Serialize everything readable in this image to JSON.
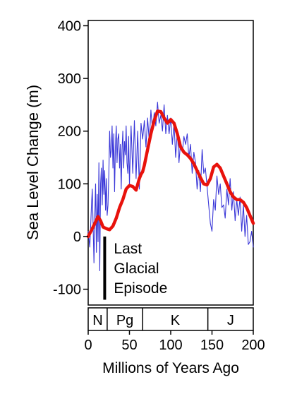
{
  "chart_data": {
    "type": "line",
    "xlabel": "Millions of Years Ago",
    "ylabel": "Sea Level Change (m)",
    "xlim": [
      0,
      200
    ],
    "ylim": [
      -130,
      410
    ],
    "x_ticks": [
      0,
      50,
      100,
      150,
      200
    ],
    "y_ticks": [
      -100,
      0,
      100,
      200,
      300,
      400
    ],
    "grid": false,
    "series": [
      {
        "color": "#e8120c",
        "style": "thick-smoothed",
        "x": [
          0,
          4,
          8,
          12,
          15,
          18,
          22,
          26,
          30,
          34,
          38,
          42,
          46,
          50,
          54,
          58,
          62,
          64,
          66,
          68,
          72,
          76,
          80,
          84,
          88,
          92,
          96,
          100,
          104,
          108,
          112,
          116,
          120,
          124,
          128,
          132,
          136,
          140,
          144,
          148,
          152,
          156,
          160,
          164,
          168,
          172,
          176,
          180,
          184,
          188,
          192,
          196,
          200
        ],
        "y": [
          0,
          12,
          25,
          38,
          30,
          18,
          15,
          13,
          20,
          35,
          55,
          70,
          90,
          97,
          95,
          88,
          110,
          118,
          123,
          135,
          165,
          195,
          220,
          238,
          237,
          225,
          215,
          222,
          215,
          195,
          170,
          160,
          155,
          148,
          138,
          125,
          112,
          100,
          98,
          110,
          132,
          137,
          130,
          115,
          100,
          85,
          75,
          70,
          70,
          65,
          55,
          40,
          25
        ]
      },
      {
        "color": "#3a37d8",
        "style": "thin-noisy",
        "x": [
          0,
          2,
          4,
          5,
          6,
          7,
          8,
          9,
          10,
          11,
          12,
          13,
          14,
          15,
          16,
          17,
          18,
          19,
          20,
          21,
          22,
          23,
          24,
          25,
          26,
          27,
          28,
          29,
          30,
          31,
          32,
          33,
          34,
          35,
          36,
          37,
          38,
          39,
          40,
          41,
          42,
          43,
          44,
          45,
          46,
          47,
          48,
          49,
          50,
          52,
          54,
          56,
          58,
          60,
          62,
          64,
          66,
          68,
          70,
          72,
          74,
          76,
          78,
          80,
          82,
          84,
          86,
          88,
          90,
          92,
          94,
          96,
          98,
          100,
          102,
          104,
          106,
          108,
          110,
          112,
          114,
          116,
          118,
          120,
          122,
          124,
          126,
          128,
          130,
          132,
          134,
          136,
          138,
          140,
          142,
          144,
          146,
          148,
          150,
          152,
          154,
          156,
          158,
          160,
          162,
          164,
          166,
          168,
          170,
          172,
          174,
          176,
          178,
          180,
          182,
          184,
          186,
          188,
          190,
          192,
          194,
          196,
          198,
          200
        ],
        "y": [
          10,
          -20,
          60,
          90,
          20,
          -50,
          40,
          100,
          -30,
          80,
          -10,
          140,
          -65,
          100,
          130,
          60,
          145,
          80,
          125,
          50,
          110,
          40,
          60,
          120,
          200,
          150,
          165,
          210,
          130,
          195,
          85,
          170,
          210,
          140,
          185,
          195,
          130,
          175,
          90,
          165,
          200,
          130,
          180,
          155,
          210,
          140,
          120,
          190,
          100,
          210,
          120,
          220,
          110,
          200,
          90,
          215,
          185,
          220,
          170,
          225,
          180,
          240,
          200,
          235,
          210,
          255,
          215,
          230,
          200,
          250,
          195,
          230,
          195,
          225,
          175,
          215,
          150,
          200,
          140,
          180,
          160,
          190,
          175,
          195,
          150,
          175,
          120,
          160,
          140,
          90,
          125,
          85,
          165,
          120,
          130,
          95,
          60,
          25,
          10,
          70,
          50,
          115,
          80,
          100,
          55,
          60,
          35,
          90,
          60,
          110,
          50,
          85,
          30,
          70,
          40,
          75,
          10,
          60,
          0,
          40,
          -15,
          -10,
          10,
          -20
        ]
      }
    ],
    "periods": [
      {
        "label": "N",
        "start": 0,
        "end": 23
      },
      {
        "label": "Pg",
        "start": 23,
        "end": 66
      },
      {
        "label": "K",
        "start": 66,
        "end": 145
      },
      {
        "label": "J",
        "start": 145,
        "end": 200
      }
    ],
    "annotation": {
      "lines": [
        "Last",
        "Glacial",
        "Episode"
      ],
      "x": 20,
      "y_from": -120,
      "y_to": 0
    }
  }
}
